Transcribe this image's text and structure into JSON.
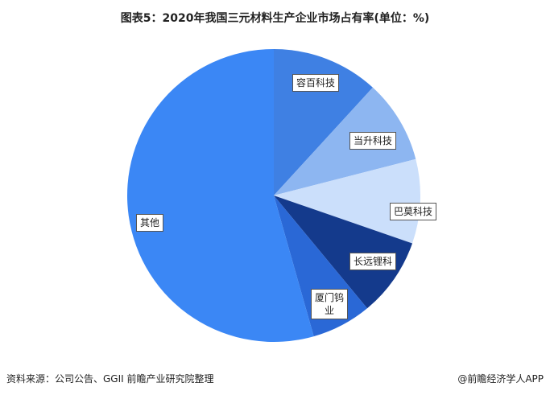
{
  "chart_data": {
    "type": "pie",
    "title": "图表5：2020年我国三元材料生产企业市场占有率(单位：%)",
    "categories": [
      "容百科技",
      "当升科技",
      "巴莫科技",
      "长远锂科",
      "厦门钨业",
      "其他"
    ],
    "values": [
      11.8,
      9.2,
      9.3,
      8.7,
      6.6,
      54.4
    ],
    "colors": [
      "#3f80e3",
      "#8db6f1",
      "#cbdffb",
      "#143a8c",
      "#2a68d6",
      "#3b87f5"
    ],
    "source": "资料来源：公司公告、GGII 前瞻产业研究院整理",
    "credit": "@前瞻经济学人APP"
  }
}
